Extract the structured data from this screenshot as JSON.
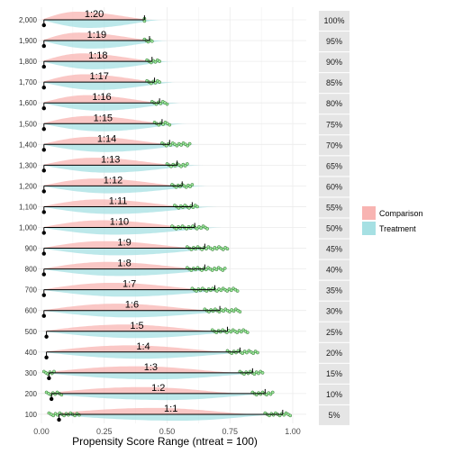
{
  "chart_data": {
    "type": "area",
    "xlabel": "Propensity Score Range (ntreat = 100)",
    "xlim": [
      0,
      1
    ],
    "x_ticks": [
      "0.00",
      "0.25",
      "0.50",
      "0.75",
      "1.00"
    ],
    "grid": true,
    "legend": {
      "position": "right",
      "entries": [
        {
          "name": "Comparison",
          "color": "#f8b4b2"
        },
        {
          "name": "Treatment",
          "color": "#a6e0e3"
        }
      ]
    },
    "colors": {
      "comparison": "#f8b4b2",
      "treatment": "#a6e0e3",
      "points": "#9be89b",
      "segment": "#000000",
      "strip_bg": "#e5e5e5",
      "grid": "#ebebeb"
    },
    "rows": [
      {
        "n": "100",
        "ratio": "1:1",
        "pct": "5%",
        "start": 0.07,
        "end": 0.96,
        "pts": [
          [
            0.03,
            0.15
          ],
          [
            0.89,
            0.99
          ]
        ],
        "comp": [
          0.01,
          0.45,
          0.85
        ],
        "treat": [
          0.02,
          0.55,
          0.95
        ]
      },
      {
        "n": "200",
        "ratio": "1:2",
        "pct": "10%",
        "start": 0.04,
        "end": 0.89,
        "pts": [
          [
            0.02,
            0.08
          ],
          [
            0.84,
            0.92
          ]
        ],
        "comp": [
          0.0,
          0.4,
          0.8
        ],
        "treat": [
          0.0,
          0.5,
          0.92
        ]
      },
      {
        "n": "300",
        "ratio": "1:3",
        "pct": "15%",
        "start": 0.03,
        "end": 0.84,
        "pts": [
          [
            0.01,
            0.05
          ],
          [
            0.79,
            0.88
          ]
        ],
        "comp": [
          0.0,
          0.38,
          0.78
        ],
        "treat": [
          0.0,
          0.45,
          0.9
        ]
      },
      {
        "n": "400",
        "ratio": "1:4",
        "pct": "20%",
        "start": 0.02,
        "end": 0.79,
        "pts": [
          [
            0.74,
            0.86
          ]
        ],
        "comp": [
          0.0,
          0.35,
          0.75
        ],
        "treat": [
          0.0,
          0.4,
          0.85
        ]
      },
      {
        "n": "500",
        "ratio": "1:5",
        "pct": "25%",
        "start": 0.02,
        "end": 0.74,
        "pts": [
          [
            0.68,
            0.82
          ]
        ],
        "comp": [
          0.0,
          0.33,
          0.7
        ],
        "treat": [
          0.0,
          0.38,
          0.82
        ]
      },
      {
        "n": "600",
        "ratio": "1:6",
        "pct": "30%",
        "start": 0.01,
        "end": 0.71,
        "pts": [
          [
            0.65,
            0.79
          ]
        ],
        "comp": [
          0.0,
          0.3,
          0.68
        ],
        "treat": [
          0.0,
          0.35,
          0.8
        ]
      },
      {
        "n": "700",
        "ratio": "1:7",
        "pct": "35%",
        "start": 0.01,
        "end": 0.69,
        "pts": [
          [
            0.6,
            0.78
          ]
        ],
        "comp": [
          0.0,
          0.28,
          0.66
        ],
        "treat": [
          0.0,
          0.33,
          0.78
        ]
      },
      {
        "n": "800",
        "ratio": "1:8",
        "pct": "40%",
        "start": 0.01,
        "end": 0.65,
        "pts": [
          [
            0.58,
            0.73
          ]
        ],
        "comp": [
          0.0,
          0.26,
          0.64
        ],
        "treat": [
          0.0,
          0.31,
          0.75
        ]
      },
      {
        "n": "900",
        "ratio": "1:9",
        "pct": "45%",
        "start": 0.01,
        "end": 0.65,
        "pts": [
          [
            0.58,
            0.74
          ]
        ],
        "comp": [
          0.0,
          0.25,
          0.62
        ],
        "treat": [
          0.0,
          0.3,
          0.74
        ]
      },
      {
        "n": "1,000",
        "ratio": "1:10",
        "pct": "50%",
        "start": 0.01,
        "end": 0.61,
        "pts": [
          [
            0.52,
            0.66
          ]
        ],
        "comp": [
          0.0,
          0.24,
          0.6
        ],
        "treat": [
          0.0,
          0.29,
          0.72
        ]
      },
      {
        "n": "1,100",
        "ratio": "1:11",
        "pct": "55%",
        "start": 0.01,
        "end": 0.6,
        "pts": [
          [
            0.53,
            0.62
          ]
        ],
        "comp": [
          0.0,
          0.23,
          0.58
        ],
        "treat": [
          0.0,
          0.28,
          0.7
        ]
      },
      {
        "n": "1,200",
        "ratio": "1:12",
        "pct": "60%",
        "start": 0.01,
        "end": 0.56,
        "pts": [
          [
            0.52,
            0.6
          ]
        ],
        "comp": [
          0.0,
          0.22,
          0.56
        ],
        "treat": [
          0.0,
          0.27,
          0.66
        ]
      },
      {
        "n": "1,300",
        "ratio": "1:13",
        "pct": "65%",
        "start": 0.01,
        "end": 0.54,
        "pts": [
          [
            0.5,
            0.58
          ]
        ],
        "comp": [
          0.0,
          0.21,
          0.54
        ],
        "treat": [
          0.0,
          0.26,
          0.64
        ]
      },
      {
        "n": "1,400",
        "ratio": "1:14",
        "pct": "70%",
        "start": 0.01,
        "end": 0.51,
        "pts": [
          [
            0.48,
            0.59
          ]
        ],
        "comp": [
          0.0,
          0.2,
          0.52
        ],
        "treat": [
          0.0,
          0.25,
          0.62
        ]
      },
      {
        "n": "1,500",
        "ratio": "1:15",
        "pct": "75%",
        "start": 0.01,
        "end": 0.48,
        "pts": [
          [
            0.45,
            0.51
          ]
        ],
        "comp": [
          0.0,
          0.19,
          0.5
        ],
        "treat": [
          0.0,
          0.24,
          0.58
        ]
      },
      {
        "n": "1,600",
        "ratio": "1:16",
        "pct": "80%",
        "start": 0.01,
        "end": 0.47,
        "pts": [
          [
            0.44,
            0.5
          ]
        ],
        "comp": [
          0.0,
          0.18,
          0.48
        ],
        "treat": [
          0.0,
          0.23,
          0.56
        ]
      },
      {
        "n": "1,700",
        "ratio": "1:17",
        "pct": "85%",
        "start": 0.01,
        "end": 0.45,
        "pts": [
          [
            0.42,
            0.47
          ]
        ],
        "comp": [
          0.0,
          0.17,
          0.47
        ],
        "treat": [
          0.0,
          0.22,
          0.54
        ]
      },
      {
        "n": "1,800",
        "ratio": "1:18",
        "pct": "90%",
        "start": 0.01,
        "end": 0.44,
        "pts": [
          [
            0.42,
            0.47
          ]
        ],
        "comp": [
          0.0,
          0.16,
          0.46
        ],
        "treat": [
          0.0,
          0.21,
          0.52
        ]
      },
      {
        "n": "1,900",
        "ratio": "1:19",
        "pct": "95%",
        "start": 0.01,
        "end": 0.43,
        "pts": [
          [
            0.41,
            0.44
          ]
        ],
        "comp": [
          0.0,
          0.15,
          0.45
        ],
        "treat": [
          0.0,
          0.2,
          0.5
        ]
      },
      {
        "n": "2,000",
        "ratio": "1:20",
        "pct": "100%",
        "start": 0.01,
        "end": 0.41,
        "pts": [
          [
            0.41,
            0.41
          ]
        ],
        "comp": [
          0.0,
          0.14,
          0.44
        ],
        "treat": [
          0.0,
          0.19,
          0.48
        ]
      }
    ]
  }
}
